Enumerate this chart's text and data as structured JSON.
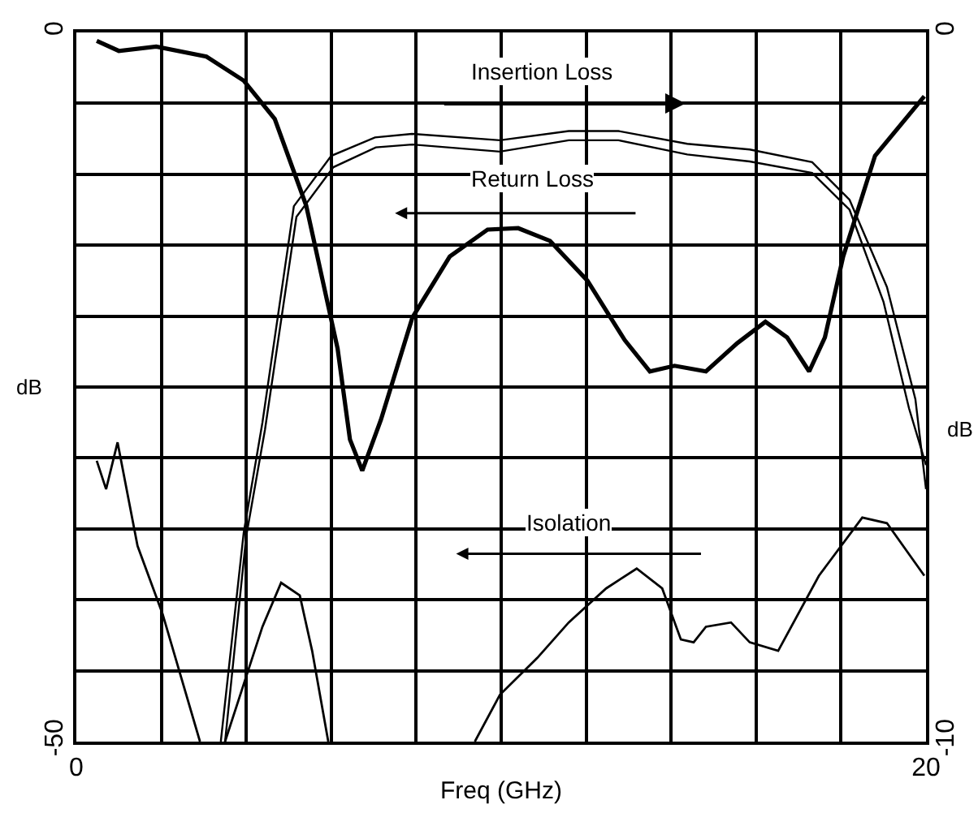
{
  "chart_data": {
    "type": "line",
    "xlabel": "Freq (GHz)",
    "ylabel": "dB",
    "y2label": "dB",
    "xlim": [
      0,
      20
    ],
    "xticks": [
      0,
      {
        "value": 2,
        "label": null
      },
      {
        "value": 4,
        "label": null
      },
      {
        "value": 6,
        "label": null
      },
      {
        "value": 8,
        "label": null
      },
      {
        "value": 10,
        "label": null
      },
      {
        "value": 12,
        "label": null
      },
      {
        "value": 14,
        "label": null
      },
      {
        "value": 16,
        "label": null
      },
      {
        "value": 18,
        "label": null
      },
      20
    ],
    "ylim": [
      -50,
      0
    ],
    "yticks": [
      -50,
      {
        "value": -45,
        "label": null
      },
      {
        "value": -40,
        "label": null
      },
      {
        "value": -35,
        "label": null
      },
      {
        "value": -30,
        "label": null
      },
      {
        "value": -25,
        "label": null
      },
      {
        "value": -20,
        "label": null
      },
      {
        "value": -15,
        "label": null
      },
      {
        "value": -10,
        "label": null
      },
      {
        "value": -5,
        "label": null
      },
      0
    ],
    "y2lim": [
      -10,
      0
    ],
    "y2ticks": [
      -10,
      {
        "value": -9,
        "label": null
      },
      {
        "value": -8,
        "label": null
      },
      {
        "value": -7,
        "label": null
      },
      {
        "value": -6,
        "label": null
      },
      {
        "value": -5,
        "label": null
      },
      {
        "value": -4,
        "label": null
      },
      {
        "value": -3,
        "label": null
      },
      {
        "value": -2,
        "label": null
      },
      {
        "value": -1,
        "label": null
      },
      0
    ],
    "grid": true,
    "marker": "none",
    "line_style": "solid",
    "annotations": [
      "Insertion Loss",
      "Return Loss",
      "Isolation"
    ],
    "series": [
      {
        "color": "#000000",
        "x": [
          0.48,
          1.0,
          1.88,
          3.06,
          3.94,
          4.67,
          5.41,
          6.15,
          6.44,
          6.73,
          7.17,
          7.91,
          8.79,
          9.68,
          10.4,
          11.15,
          12.03,
          12.91,
          13.5,
          14.08,
          14.82,
          15.56,
          16.22,
          16.73,
          17.25,
          17.62,
          18.05,
          18.8,
          19.96
        ],
        "values": [
          -0.6,
          -1.3,
          -1.0,
          -1.7,
          -3.4,
          -6.1,
          -12.2,
          -22.3,
          -28.7,
          -30.9,
          -27.3,
          -20.1,
          -15.8,
          -13.9,
          -13.8,
          -14.7,
          -17.5,
          -21.7,
          -23.9,
          -23.5,
          -23.9,
          -21.9,
          -20.4,
          -21.5,
          -23.9,
          -21.5,
          -15.8,
          -8.7,
          -4.5
        ]
      },
      {
        "color": "#000000",
        "axis": "y2",
        "x": [
          3.4,
          3.94,
          4.38,
          5.12,
          6.0,
          7.03,
          7.9,
          9.97,
          11.59,
          12.76,
          14.38,
          15.85,
          17.32,
          18.2,
          19.08,
          19.75,
          20.0
        ],
        "values": [
          -10,
          -7.05,
          -5.5,
          -2.45,
          -1.74,
          -1.48,
          -1.43,
          -1.52,
          -1.39,
          -1.39,
          -1.57,
          -1.65,
          -1.83,
          -2.36,
          -3.59,
          -5.17,
          -6.44
        ]
      },
      {
        "color": "#000000",
        "axis": "y2",
        "x": [
          3.5,
          4.0,
          4.44,
          5.18,
          6.05,
          7.05,
          7.9,
          9.97,
          11.59,
          12.76,
          14.38,
          15.85,
          17.32,
          18.2,
          19.0,
          19.6,
          20.0
        ],
        "values": [
          -10,
          -7.1,
          -5.6,
          -2.6,
          -1.9,
          -1.62,
          -1.58,
          -1.68,
          -1.52,
          -1.52,
          -1.72,
          -1.82,
          -1.98,
          -2.5,
          -3.8,
          -5.3,
          -6.1
        ]
      },
      {
        "color": "#000000",
        "x": [
          0.48,
          0.7,
          0.97,
          1.44,
          2.03,
          2.91,
          3.2,
          3.5,
          4.38,
          4.82,
          5.26,
          5.55,
          5.93,
          7.5,
          9.38,
          9.97,
          10.85,
          11.59,
          12.47,
          13.19,
          13.79,
          14.23,
          14.53,
          14.82,
          15.41,
          15.85,
          16.52,
          17.48,
          18.5,
          19.08,
          19.96
        ],
        "values": [
          -30.2,
          -32.2,
          -28.9,
          -36.2,
          -41,
          -50,
          null,
          -50,
          -41.9,
          -38.8,
          -39.7,
          -43.6,
          -50,
          null,
          -50,
          -46.7,
          -44.1,
          -41.6,
          -39.2,
          -37.8,
          -39.2,
          -42.8,
          -43,
          -41.9,
          -41.6,
          -43,
          -43.6,
          -38.3,
          -34.2,
          -34.6,
          -38.3
        ]
      }
    ]
  }
}
